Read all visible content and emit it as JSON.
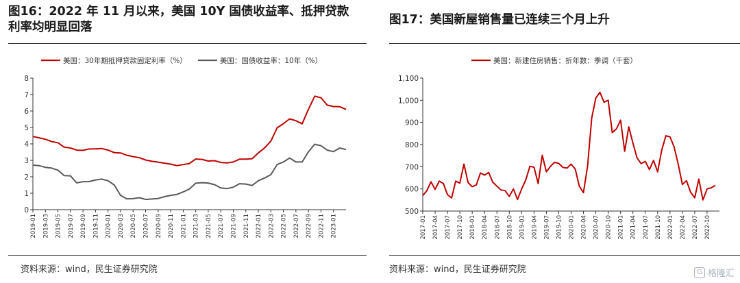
{
  "left_panel": {
    "title": "图16：2022 年 11 月以来，美国 10Y 国债收益率、抵押贷款利率均明显回落",
    "source": "资料来源：wind，民生证券研究院"
  },
  "right_panel": {
    "title": "图17：美国新屋销售量已连续三个月上升",
    "source": "资料来源：wind，民生证券研究院"
  },
  "watermark": {
    "text": "格隆汇",
    "icon": "g-logo-icon"
  },
  "chart_data": [
    {
      "type": "line",
      "ylim": [
        0,
        8
      ],
      "yticks": [
        0,
        1,
        2,
        3,
        4,
        5,
        6,
        7,
        8
      ],
      "xlim": [
        "2019-01",
        "2023-03"
      ],
      "xticks": [
        "2019-01",
        "2019-03",
        "2019-05",
        "2019-07",
        "2019-09",
        "2019-11",
        "2020-01",
        "2020-03",
        "2020-05",
        "2020-07",
        "2020-09",
        "2020-11",
        "2021-01",
        "2021-03",
        "2021-05",
        "2021-07",
        "2021-09",
        "2021-11",
        "2022-01",
        "2022-03",
        "2022-05",
        "2022-07",
        "2022-09",
        "2022-11",
        "2023-01"
      ],
      "legend_position": "top",
      "grid": false,
      "series": [
        {
          "name": "美国：30年期抵押贷款固定利率（%）",
          "color": "#c00000",
          "points": [
            [
              "2019-01",
              4.45
            ],
            [
              "2019-02",
              4.37
            ],
            [
              "2019-03",
              4.28
            ],
            [
              "2019-04",
              4.14
            ],
            [
              "2019-05",
              4.07
            ],
            [
              "2019-06",
              3.8
            ],
            [
              "2019-07",
              3.75
            ],
            [
              "2019-08",
              3.62
            ],
            [
              "2019-09",
              3.61
            ],
            [
              "2019-10",
              3.69
            ],
            [
              "2019-11",
              3.7
            ],
            [
              "2019-12",
              3.72
            ],
            [
              "2020-01",
              3.62
            ],
            [
              "2020-02",
              3.47
            ],
            [
              "2020-03",
              3.45
            ],
            [
              "2020-04",
              3.31
            ],
            [
              "2020-05",
              3.23
            ],
            [
              "2020-06",
              3.16
            ],
            [
              "2020-07",
              3.02
            ],
            [
              "2020-08",
              2.94
            ],
            [
              "2020-09",
              2.89
            ],
            [
              "2020-10",
              2.83
            ],
            [
              "2020-11",
              2.77
            ],
            [
              "2020-12",
              2.68
            ],
            [
              "2021-01",
              2.74
            ],
            [
              "2021-02",
              2.81
            ],
            [
              "2021-03",
              3.08
            ],
            [
              "2021-04",
              3.06
            ],
            [
              "2021-05",
              2.96
            ],
            [
              "2021-06",
              2.98
            ],
            [
              "2021-07",
              2.87
            ],
            [
              "2021-08",
              2.84
            ],
            [
              "2021-09",
              2.9
            ],
            [
              "2021-10",
              3.07
            ],
            [
              "2021-11",
              3.07
            ],
            [
              "2021-12",
              3.1
            ],
            [
              "2022-01",
              3.45
            ],
            [
              "2022-02",
              3.76
            ],
            [
              "2022-03",
              4.17
            ],
            [
              "2022-04",
              4.98
            ],
            [
              "2022-05",
              5.23
            ],
            [
              "2022-06",
              5.52
            ],
            [
              "2022-07",
              5.41
            ],
            [
              "2022-08",
              5.22
            ],
            [
              "2022-09",
              6.11
            ],
            [
              "2022-10",
              6.9
            ],
            [
              "2022-11",
              6.81
            ],
            [
              "2022-12",
              6.36
            ],
            [
              "2023-01",
              6.27
            ],
            [
              "2023-02",
              6.26
            ],
            [
              "2023-03",
              6.1
            ]
          ]
        },
        {
          "name": "美国：国债收益率：10年（%）",
          "color": "#595959",
          "points": [
            [
              "2019-01",
              2.71
            ],
            [
              "2019-02",
              2.68
            ],
            [
              "2019-03",
              2.57
            ],
            [
              "2019-04",
              2.53
            ],
            [
              "2019-05",
              2.4
            ],
            [
              "2019-06",
              2.07
            ],
            [
              "2019-07",
              2.06
            ],
            [
              "2019-08",
              1.63
            ],
            [
              "2019-09",
              1.7
            ],
            [
              "2019-10",
              1.71
            ],
            [
              "2019-11",
              1.81
            ],
            [
              "2019-12",
              1.86
            ],
            [
              "2020-01",
              1.76
            ],
            [
              "2020-02",
              1.5
            ],
            [
              "2020-03",
              0.87
            ],
            [
              "2020-04",
              0.66
            ],
            [
              "2020-05",
              0.67
            ],
            [
              "2020-06",
              0.73
            ],
            [
              "2020-07",
              0.62
            ],
            [
              "2020-08",
              0.65
            ],
            [
              "2020-09",
              0.68
            ],
            [
              "2020-10",
              0.79
            ],
            [
              "2020-11",
              0.87
            ],
            [
              "2020-12",
              0.93
            ],
            [
              "2021-01",
              1.08
            ],
            [
              "2021-02",
              1.26
            ],
            [
              "2021-03",
              1.61
            ],
            [
              "2021-04",
              1.64
            ],
            [
              "2021-05",
              1.62
            ],
            [
              "2021-06",
              1.52
            ],
            [
              "2021-07",
              1.32
            ],
            [
              "2021-08",
              1.28
            ],
            [
              "2021-09",
              1.37
            ],
            [
              "2021-10",
              1.58
            ],
            [
              "2021-11",
              1.56
            ],
            [
              "2021-12",
              1.47
            ],
            [
              "2022-01",
              1.76
            ],
            [
              "2022-02",
              1.93
            ],
            [
              "2022-03",
              2.13
            ],
            [
              "2022-04",
              2.75
            ],
            [
              "2022-05",
              2.9
            ],
            [
              "2022-06",
              3.14
            ],
            [
              "2022-07",
              2.9
            ],
            [
              "2022-08",
              2.9
            ],
            [
              "2022-09",
              3.52
            ],
            [
              "2022-10",
              3.98
            ],
            [
              "2022-11",
              3.89
            ],
            [
              "2022-12",
              3.62
            ],
            [
              "2023-01",
              3.53
            ],
            [
              "2023-02",
              3.75
            ],
            [
              "2023-03",
              3.66
            ]
          ]
        }
      ]
    },
    {
      "type": "line",
      "ylim": [
        500,
        1100
      ],
      "yticks": [
        500,
        600,
        700,
        800,
        900,
        1000,
        1100
      ],
      "ytick_labels": [
        "500",
        "600",
        "700",
        "800",
        "900",
        "1,000",
        "1,100"
      ],
      "xlim": [
        "2017-01",
        "2023-01"
      ],
      "xticks": [
        "2017-01",
        "2017-04",
        "2017-07",
        "2017-10",
        "2018-01",
        "2018-04",
        "2018-07",
        "2018-10",
        "2019-01",
        "2019-04",
        "2019-07",
        "2019-10",
        "2020-01",
        "2020-04",
        "2020-07",
        "2020-10",
        "2021-01",
        "2021-04",
        "2021-07",
        "2021-10",
        "2022-01",
        "2022-04",
        "2022-07",
        "2022-10"
      ],
      "legend_position": "top",
      "grid": false,
      "series": [
        {
          "name": "美国：新建住房销售：折年数：季调（千套）",
          "color": "#c00000",
          "points": [
            [
              "2017-01",
              570
            ],
            [
              "2017-02",
              592
            ],
            [
              "2017-03",
              632
            ],
            [
              "2017-04",
              598
            ],
            [
              "2017-05",
              635
            ],
            [
              "2017-06",
              624
            ],
            [
              "2017-07",
              574
            ],
            [
              "2017-08",
              559
            ],
            [
              "2017-09",
              635
            ],
            [
              "2017-10",
              626
            ],
            [
              "2017-11",
              712
            ],
            [
              "2017-12",
              628
            ],
            [
              "2018-01",
              610
            ],
            [
              "2018-02",
              618
            ],
            [
              "2018-03",
              672
            ],
            [
              "2018-04",
              662
            ],
            [
              "2018-05",
              674
            ],
            [
              "2018-06",
              630
            ],
            [
              "2018-07",
              612
            ],
            [
              "2018-08",
              595
            ],
            [
              "2018-09",
              592
            ],
            [
              "2018-10",
              566
            ],
            [
              "2018-11",
              600
            ],
            [
              "2018-12",
              552
            ],
            [
              "2019-01",
              600
            ],
            [
              "2019-02",
              640
            ],
            [
              "2019-03",
              702
            ],
            [
              "2019-04",
              698
            ],
            [
              "2019-05",
              624
            ],
            [
              "2019-06",
              752
            ],
            [
              "2019-07",
              677
            ],
            [
              "2019-08",
              702
            ],
            [
              "2019-09",
              720
            ],
            [
              "2019-10",
              715
            ],
            [
              "2019-11",
              697
            ],
            [
              "2019-12",
              694
            ],
            [
              "2020-01",
              712
            ],
            [
              "2020-02",
              690
            ],
            [
              "2020-03",
              612
            ],
            [
              "2020-04",
              583
            ],
            [
              "2020-05",
              704
            ],
            [
              "2020-06",
              920
            ],
            [
              "2020-07",
              1011
            ],
            [
              "2020-08",
              1036
            ],
            [
              "2020-09",
              991
            ],
            [
              "2020-10",
              1000
            ],
            [
              "2020-11",
              854
            ],
            [
              "2020-12",
              871
            ],
            [
              "2021-01",
              910
            ],
            [
              "2021-02",
              770
            ],
            [
              "2021-03",
              880
            ],
            [
              "2021-04",
              807
            ],
            [
              "2021-05",
              740
            ],
            [
              "2021-06",
              714
            ],
            [
              "2021-07",
              724
            ],
            [
              "2021-08",
              687
            ],
            [
              "2021-09",
              729
            ],
            [
              "2021-10",
              677
            ],
            [
              "2021-11",
              775
            ],
            [
              "2021-12",
              840
            ],
            [
              "2022-01",
              835
            ],
            [
              "2022-02",
              790
            ],
            [
              "2022-03",
              711
            ],
            [
              "2022-04",
              620
            ],
            [
              "2022-05",
              637
            ],
            [
              "2022-06",
              585
            ],
            [
              "2022-07",
              560
            ],
            [
              "2022-08",
              644
            ],
            [
              "2022-09",
              550
            ],
            [
              "2022-10",
              600
            ],
            [
              "2022-11",
              605
            ],
            [
              "2022-12",
              616
            ]
          ]
        }
      ]
    }
  ]
}
